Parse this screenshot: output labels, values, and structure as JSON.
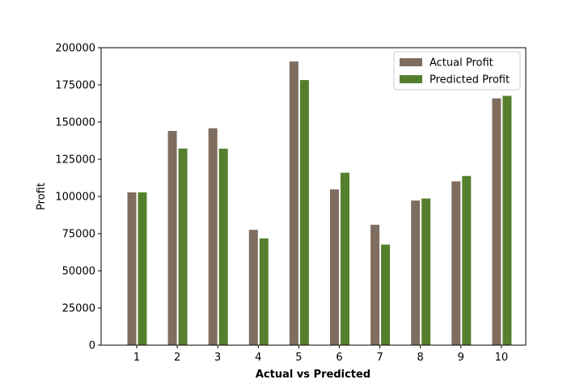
{
  "chart_data": {
    "type": "bar",
    "title": "",
    "xlabel": "Actual vs Predicted",
    "ylabel": "Profit",
    "ylim": [
      0,
      200000
    ],
    "yticks": [
      0,
      25000,
      50000,
      75000,
      100000,
      125000,
      150000,
      175000,
      200000
    ],
    "categories": [
      "1",
      "2",
      "3",
      "4",
      "5",
      "6",
      "7",
      "8",
      "9",
      "10"
    ],
    "series": [
      {
        "name": "Actual Profit",
        "color": "#7f6d5f",
        "values": [
          103000,
          144300,
          146100,
          77800,
          191000,
          105000,
          81200,
          97500,
          110400,
          166200
        ]
      },
      {
        "name": "Predicted Profit",
        "color": "#557f2d",
        "values": [
          103000,
          132500,
          132400,
          72000,
          178500,
          116200,
          67900,
          98900,
          114000,
          167900
        ]
      }
    ],
    "legend": "top-right",
    "grid": false
  }
}
